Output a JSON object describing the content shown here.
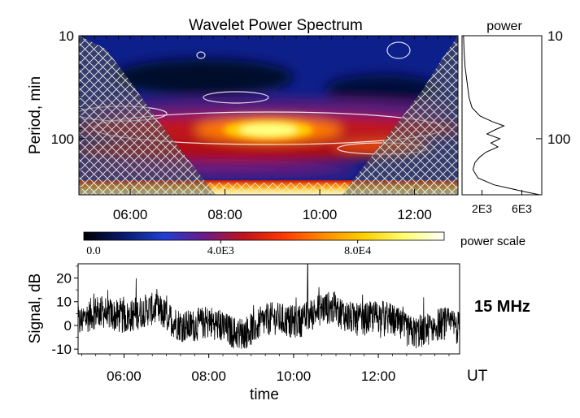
{
  "chart_data": [
    {
      "type": "heatmap",
      "title": "Wavelet Power Spectrum",
      "ylabel": "Period, min",
      "y_scale": "log",
      "y_ticks": [
        "10",
        "100"
      ],
      "x_ticks": [
        "06:00",
        "08:00",
        "10:00",
        "12:00"
      ],
      "xlim": [
        "04:55",
        "12:55"
      ],
      "ylim": [
        10,
        350
      ],
      "grid": false,
      "colorbar": {
        "label": "power scale",
        "tick_labels": [
          "0.0",
          "4.0E3",
          "8.0E4"
        ],
        "colors": [
          "#000000",
          "#0a1a6e",
          "#1f3fd1",
          "#6a1a8a",
          "#c0141a",
          "#ff3a00",
          "#ff8c00",
          "#ffd000",
          "#ffff70",
          "#ffffff"
        ]
      },
      "features": [
        {
          "name": "main peak",
          "time": "08:40",
          "period_min": 75,
          "color": "#ffff60"
        },
        {
          "name": "long-period band",
          "time_range": [
            "04:55",
            "12:55"
          ],
          "period_min": 330,
          "color": "#ffd84a"
        }
      ],
      "hatch": "cone of influence"
    },
    {
      "type": "line",
      "title": "power",
      "xlabel": "",
      "x_ticks": [
        "2E3",
        "6E3"
      ],
      "y_ticks": [
        "10",
        "100"
      ],
      "y_scale": "log",
      "xlim": [
        0,
        8000
      ],
      "ylim": [
        10,
        350
      ],
      "series": [
        {
          "period": [
            10,
            14,
            20,
            28,
            40,
            50,
            60,
            68,
            75,
            82,
            90,
            100,
            110,
            120,
            135,
            150,
            170,
            200,
            240,
            280,
            330,
            350
          ],
          "power": [
            150,
            200,
            300,
            500,
            700,
            1000,
            1800,
            3000,
            4200,
            3300,
            2500,
            3800,
            2900,
            3600,
            2400,
            1800,
            1300,
            1100,
            1600,
            3200,
            6500,
            7800
          ]
        }
      ]
    },
    {
      "type": "line",
      "ylabel": "Signal, dB",
      "xlabel": "time",
      "x_unit": "UT",
      "x_ticks": [
        "06:00",
        "08:00",
        "10:00",
        "12:00"
      ],
      "y_ticks": [
        "-10",
        "0",
        "10",
        "20"
      ],
      "xlim": [
        "04:55",
        "13:55"
      ],
      "ylim": [
        -12,
        26
      ],
      "annotation": "15 MHz",
      "series": [
        {
          "description": "noisy signal, mostly between -8 and 12 dB, spike to 26 dB near 10:20",
          "spike": {
            "time": "10:20",
            "value": 26
          }
        }
      ]
    }
  ]
}
